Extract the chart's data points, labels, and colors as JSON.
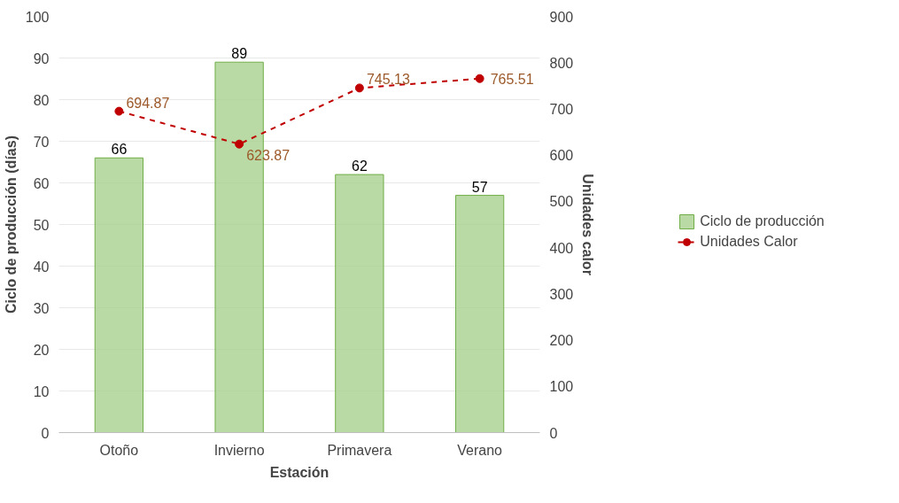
{
  "chart_data": {
    "type": "bar",
    "xlabel": "Estación",
    "ylabel": "Ciclo de producción (días)",
    "y2label": "Unidades calor",
    "categories": [
      "Otoño",
      "Invierno",
      "Primavera",
      "Verano"
    ],
    "series": [
      {
        "name": "Ciclo de producción",
        "type": "bar",
        "color": "#a9d18e",
        "values": [
          66,
          89,
          62,
          57
        ]
      },
      {
        "name": "Unidades Calor",
        "type": "line",
        "axis": "y2",
        "color": "#c00000",
        "marker": "circle",
        "line_style": "dashed",
        "values": [
          694.87,
          623.87,
          745.13,
          765.51
        ]
      }
    ],
    "ylim": [
      0,
      100
    ],
    "yticks": [
      0,
      10,
      20,
      30,
      40,
      50,
      60,
      70,
      80,
      90,
      100
    ],
    "y2lim": [
      0,
      900
    ],
    "y2ticks": [
      0,
      100,
      200,
      300,
      400,
      500,
      600,
      700,
      800,
      900
    ],
    "grid": "y",
    "legend": "right",
    "data_labels": true
  }
}
